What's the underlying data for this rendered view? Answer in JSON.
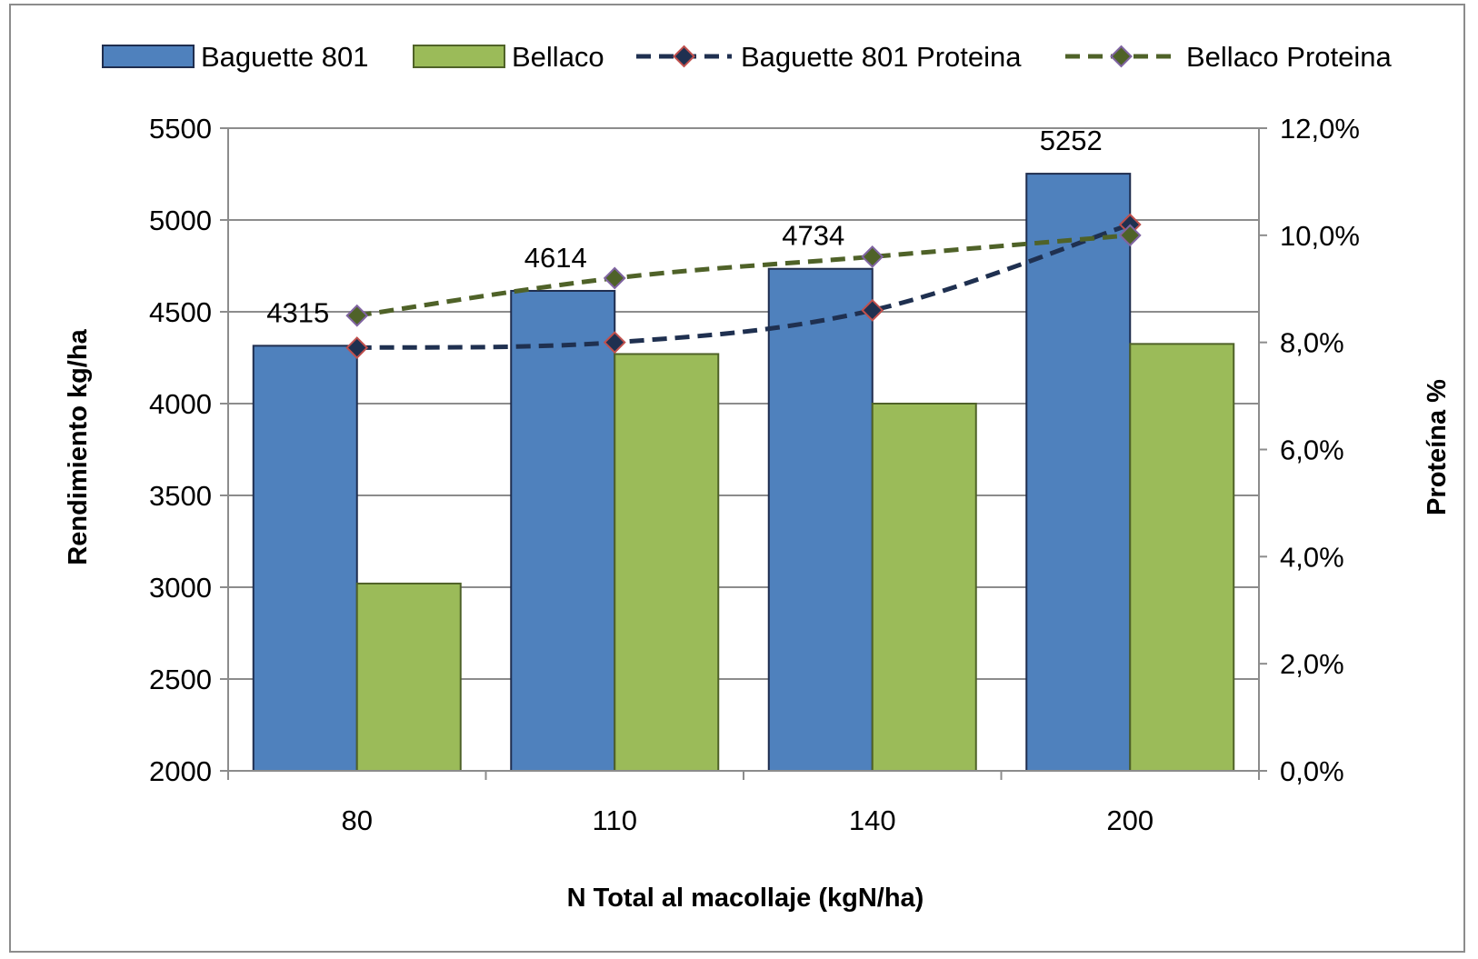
{
  "chart_data": {
    "type": "bar",
    "categories": [
      "80",
      "110",
      "140",
      "200"
    ],
    "series": [
      {
        "name": "Baguette 801",
        "kind": "bar",
        "axis": "left",
        "values": [
          4315,
          4614,
          4734,
          5252
        ],
        "color": "#4f81bd",
        "stroke": "#1f2d4e"
      },
      {
        "name": "Bellaco",
        "kind": "bar",
        "axis": "left",
        "values": [
          3020,
          4270,
          4000,
          4325
        ],
        "color": "#9bbb59",
        "stroke": "#4f6228"
      },
      {
        "name": "Baguette 801 Proteina",
        "kind": "line",
        "axis": "right",
        "values": [
          0.079,
          0.08,
          0.086,
          0.102
        ],
        "color": "#1f3050",
        "marker_stroke": "#c0504d"
      },
      {
        "name": "Bellaco Proteina",
        "kind": "line",
        "axis": "right",
        "values": [
          0.085,
          0.092,
          0.096,
          0.1
        ],
        "color": "#4f6228",
        "marker_stroke": "#8064a2"
      }
    ],
    "data_labels": [
      "4315",
      "4614",
      "4734",
      "5252"
    ],
    "xlabel": "N Total al macollaje  (kgN/ha)",
    "ylabel": "Rendimiento kg/ha",
    "y2label": "Proteína %",
    "ylim": [
      2000,
      5500
    ],
    "y2lim": [
      0,
      0.12
    ],
    "yticks": [
      "2000",
      "2500",
      "3000",
      "3500",
      "4000",
      "4500",
      "5000",
      "5500"
    ],
    "y2ticks": [
      "0,0%",
      "2,0%",
      "4,0%",
      "6,0%",
      "8,0%",
      "10,0%",
      "12,0%"
    ],
    "grid": true,
    "legend_position": "top"
  }
}
